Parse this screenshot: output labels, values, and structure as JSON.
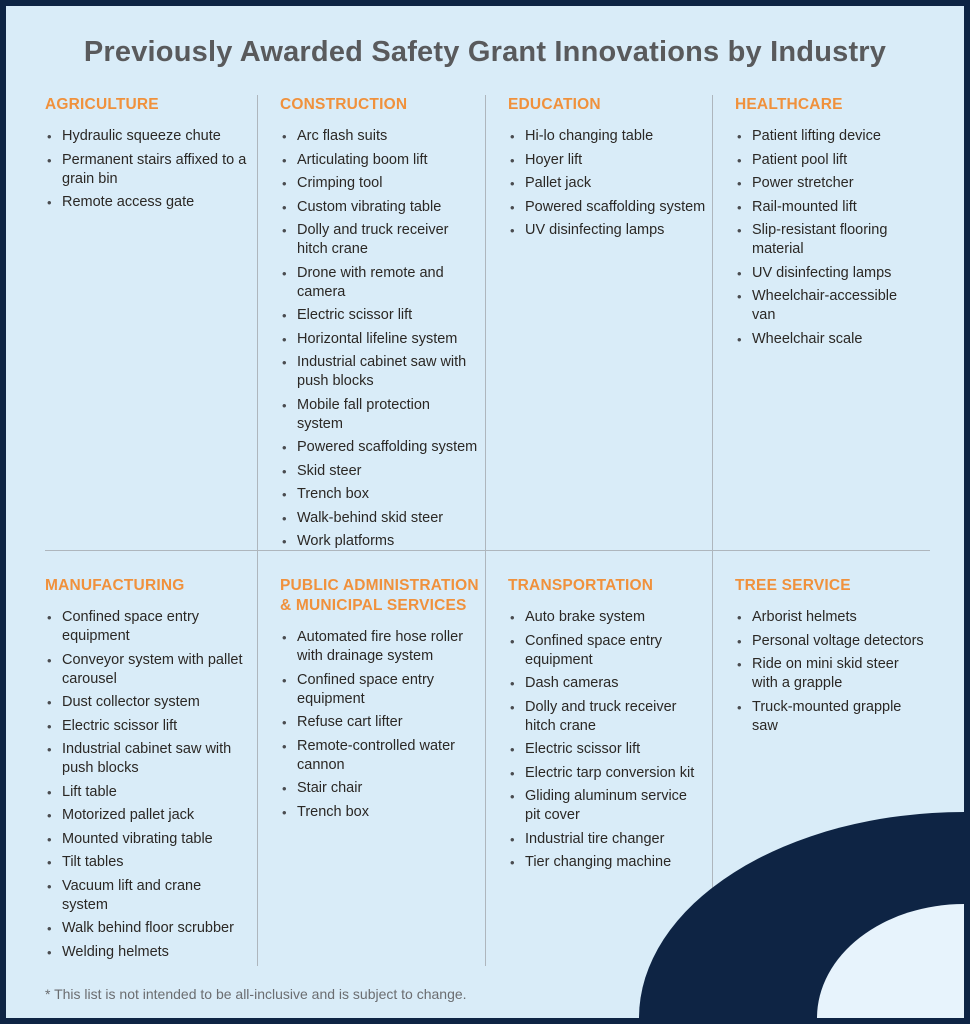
{
  "title": "Previously Awarded Safety Grant Innovations by Industry",
  "footnote": "* This list is not intended to be all-inclusive and is subject to change.",
  "colors": {
    "accent_orange": "#F0913C",
    "navy": "#0E2444",
    "page_background": "#D9ECF8",
    "title_gray": "#595A5C",
    "divider_gray": "#AEB6BD",
    "corner_wedge": "#E7F3FC"
  },
  "sections": [
    {
      "heading": "AGRICULTURE",
      "items": [
        "Hydraulic squeeze chute",
        "Permanent stairs affixed to a grain bin",
        "Remote access gate"
      ]
    },
    {
      "heading": "CONSTRUCTION",
      "items": [
        "Arc flash suits",
        "Articulating boom lift",
        "Crimping tool",
        "Custom vibrating table",
        "Dolly and truck receiver hitch crane",
        "Drone with remote and camera",
        "Electric scissor lift",
        "Horizontal lifeline system",
        "Industrial cabinet saw with push blocks",
        "Mobile fall protection system",
        "Powered scaffolding system",
        "Skid steer",
        "Trench box",
        "Walk-behind skid steer",
        "Work platforms"
      ]
    },
    {
      "heading": "EDUCATION",
      "items": [
        "Hi-lo changing table",
        "Hoyer lift",
        "Pallet jack",
        "Powered scaffolding system",
        "UV disinfecting lamps"
      ]
    },
    {
      "heading": "HEALTHCARE",
      "items": [
        "Patient lifting device",
        "Patient pool lift",
        "Power stretcher",
        "Rail-mounted lift",
        "Slip-resistant flooring material",
        "UV disinfecting lamps",
        "Wheelchair-accessible van",
        "Wheelchair scale"
      ]
    },
    {
      "heading": "MANUFACTURING",
      "items": [
        "Confined space entry equipment",
        "Conveyor system with pallet carousel",
        "Dust collector system",
        "Electric scissor lift",
        "Industrial cabinet saw with push blocks",
        "Lift table",
        "Motorized pallet jack",
        "Mounted vibrating table",
        "Tilt tables",
        "Vacuum lift and crane system",
        "Walk behind floor scrubber",
        "Welding helmets"
      ]
    },
    {
      "heading": "PUBLIC ADMINISTRATION\n& MUNICIPAL SERVICES",
      "items": [
        "Automated fire hose roller with drainage system",
        "Confined space entry equipment",
        "Refuse cart lifter",
        "Remote-controlled water cannon",
        "Stair chair",
        "Trench box"
      ]
    },
    {
      "heading": "TRANSPORTATION",
      "items": [
        "Auto brake system",
        "Confined space entry equipment",
        "Dash cameras",
        "Dolly and truck receiver hitch crane",
        "Electric scissor lift",
        "Electric tarp conversion kit",
        "Gliding aluminum service pit cover",
        "Industrial tire changer",
        "Tier changing machine"
      ]
    },
    {
      "heading": "TREE SERVICE",
      "items": [
        "Arborist helmets",
        "Personal voltage detectors",
        "Ride on mini skid steer with a grapple",
        "Truck-mounted grapple saw"
      ]
    }
  ]
}
